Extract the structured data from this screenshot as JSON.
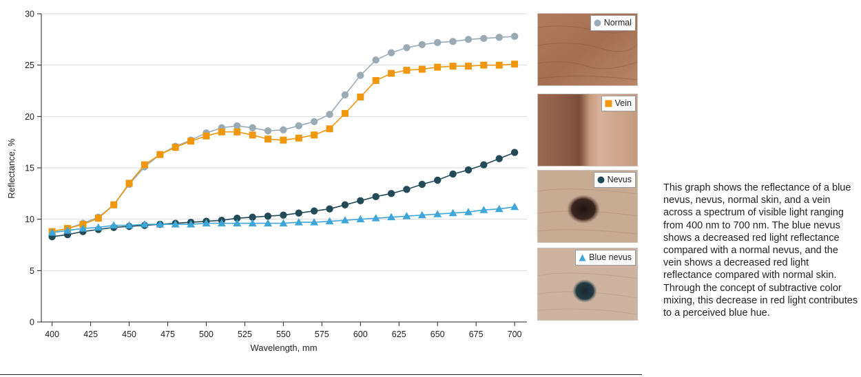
{
  "chart_data": {
    "type": "line",
    "xlabel": "Wavelength, mm",
    "ylabel": "Reflectance, %",
    "xlim": [
      393,
      708
    ],
    "ylim": [
      0,
      30
    ],
    "xticks": [
      400,
      425,
      450,
      475,
      500,
      525,
      550,
      575,
      600,
      625,
      650,
      675,
      700
    ],
    "yticks": [
      0,
      5,
      10,
      15,
      20,
      25,
      30
    ],
    "grid": "horizontal",
    "x": [
      400,
      410,
      420,
      430,
      440,
      450,
      460,
      470,
      480,
      490,
      500,
      510,
      520,
      530,
      540,
      550,
      560,
      570,
      580,
      590,
      600,
      610,
      620,
      630,
      640,
      650,
      660,
      670,
      680,
      690,
      700
    ],
    "series": [
      {
        "name": "Normal",
        "marker": "circle",
        "color": "#9aabb5",
        "values": [
          8.8,
          9.1,
          9.6,
          10.2,
          11.4,
          13.4,
          15.1,
          16.3,
          17.1,
          17.7,
          18.4,
          18.9,
          19.1,
          18.9,
          18.6,
          18.7,
          19.1,
          19.5,
          20.2,
          22.1,
          24.0,
          25.5,
          26.2,
          26.7,
          27.0,
          27.2,
          27.3,
          27.5,
          27.6,
          27.7,
          27.8
        ]
      },
      {
        "name": "Vein",
        "marker": "square",
        "color": "#f0970e",
        "values": [
          8.8,
          9.1,
          9.5,
          10.1,
          11.4,
          13.5,
          15.3,
          16.3,
          17.0,
          17.6,
          18.1,
          18.5,
          18.5,
          18.2,
          17.8,
          17.7,
          17.9,
          18.2,
          18.8,
          20.3,
          21.9,
          23.5,
          24.2,
          24.5,
          24.6,
          24.8,
          24.9,
          24.9,
          25.0,
          25.0,
          25.1
        ]
      },
      {
        "name": "Nevus",
        "marker": "circle",
        "color": "#234a57",
        "values": [
          8.3,
          8.5,
          8.8,
          9.0,
          9.2,
          9.3,
          9.4,
          9.5,
          9.6,
          9.7,
          9.8,
          9.9,
          10.1,
          10.2,
          10.3,
          10.4,
          10.6,
          10.8,
          11.0,
          11.4,
          11.8,
          12.2,
          12.5,
          12.9,
          13.4,
          13.8,
          14.4,
          14.8,
          15.3,
          15.9,
          16.5
        ]
      },
      {
        "name": "Blue nevus",
        "marker": "triangle",
        "color": "#3ea6d9",
        "values": [
          8.7,
          8.9,
          9.1,
          9.2,
          9.4,
          9.4,
          9.5,
          9.5,
          9.5,
          9.5,
          9.6,
          9.6,
          9.6,
          9.6,
          9.6,
          9.6,
          9.7,
          9.7,
          9.8,
          9.9,
          10.0,
          10.1,
          10.2,
          10.3,
          10.4,
          10.5,
          10.6,
          10.7,
          10.9,
          11.0,
          11.2
        ]
      }
    ]
  },
  "legend_panels": [
    {
      "label": "Normal",
      "marker": "circle",
      "color": "#9aabb5"
    },
    {
      "label": "Vein",
      "marker": "square",
      "color": "#f0970e"
    },
    {
      "label": "Nevus",
      "marker": "circle",
      "color": "#234a57"
    },
    {
      "label": "Blue nevus",
      "marker": "triangle",
      "color": "#3ea6d9"
    }
  ],
  "caption": "This graph shows the reflectance of a blue nevus, nevus, normal skin, and a vein across a spectrum of visible light ranging from 400 nm to 700 nm. The blue nevus shows a decreased red light reflectance compared with a normal nevus, and the vein shows a decreased red light reflectance compared with normal skin. Through the concept of subtractive color mixing, this decrease in red light contributes to a perceived blue hue."
}
